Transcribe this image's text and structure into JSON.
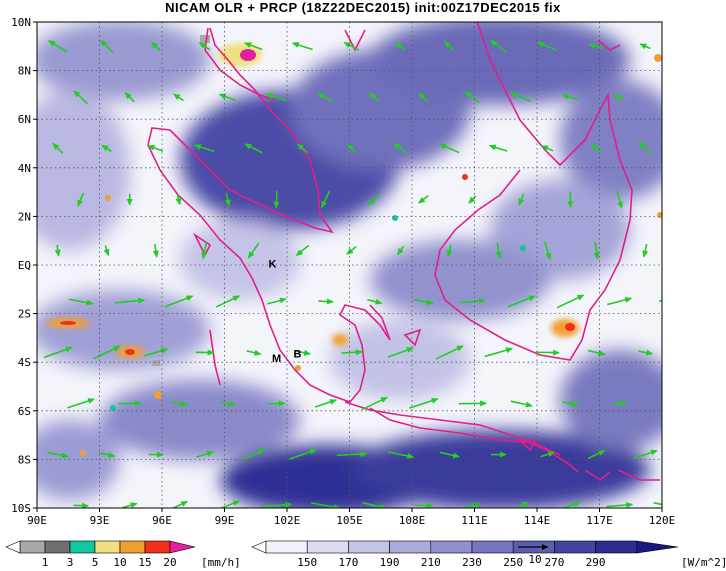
{
  "title": "NICAM OLR + PRCP (18Z22DEC2015) init:00Z17DEC2015 fix",
  "map": {
    "lon_labels": [
      "90E",
      "93E",
      "96E",
      "99E",
      "102E",
      "105E",
      "108E",
      "111E",
      "114E",
      "117E",
      "120E"
    ],
    "lat_labels": [
      "10N",
      "8N",
      "6N",
      "4N",
      "2N",
      "EQ",
      "2S",
      "4S",
      "6S",
      "8S",
      "10S"
    ],
    "markers": [
      {
        "text": "K",
        "lon": 101.3,
        "lat": -0.1
      },
      {
        "text": "M",
        "lon": 101.5,
        "lat": -4.0
      },
      {
        "text": "B",
        "lon": 102.5,
        "lat": -3.8
      }
    ],
    "colors": {
      "coast": "#e0208a",
      "wind": "#22cc22",
      "grid": "#555555"
    }
  },
  "prcp_legend": {
    "ticks": [
      "1",
      "3",
      "5",
      "10",
      "15",
      "20"
    ],
    "unit": "[mm/h]",
    "colors": [
      "#a8a8a8",
      "#707070",
      "#10c8a0",
      "#f0e080",
      "#f0a030",
      "#f03018",
      "#e020a0"
    ]
  },
  "olr_legend": {
    "ticks": [
      "150",
      "170",
      "190",
      "210",
      "230",
      "250",
      "270",
      "290"
    ],
    "unit": "[W/m^2]",
    "vector_label": "10",
    "colors": [
      "#f2f2fa",
      "#dcdcf0",
      "#c4c4e6",
      "#ababdc",
      "#9090cc",
      "#7676be",
      "#5c5cb0",
      "#4444a0",
      "#2c2c90",
      "#181880"
    ]
  }
}
